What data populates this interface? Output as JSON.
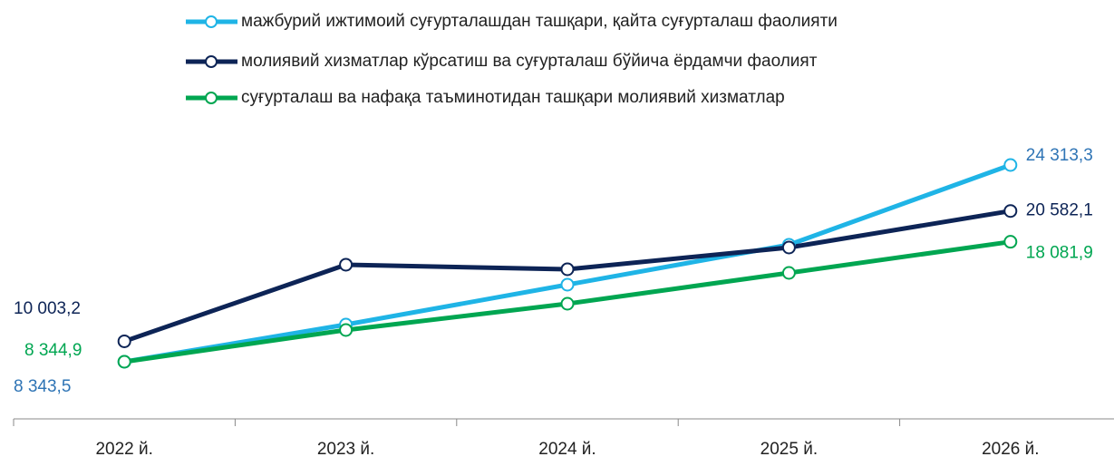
{
  "chart_data": {
    "type": "line",
    "categories": [
      "2022 й.",
      "2023 й.",
      "2024 й.",
      "2025 й.",
      "2026 й."
    ],
    "series": [
      {
        "name": "мажбурий ижтимоий суғурталашдан ташқари, қайта суғурталаш фаолияти",
        "color": "#1fb4e6",
        "label_color": "#2e74b5",
        "values": [
          8343.5,
          11361,
          14600,
          17838,
          24313.3
        ],
        "value_labels": [
          "8 343,5",
          null,
          null,
          null,
          "24 313,3"
        ]
      },
      {
        "name": "молиявий хизматлар кўрсатиш ва суғурталаш бўйича ёрдамчи фаолият",
        "color": "#0d2456",
        "label_color": "#0d2456",
        "values": [
          10003.2,
          16219,
          15851,
          17617,
          20582.1
        ],
        "value_labels": [
          "10 003,2",
          null,
          null,
          null,
          "20 582,1"
        ]
      },
      {
        "name": "суғурталаш ва нафақа таъминотидан ташқари молиявий хизматлар",
        "color": "#00a651",
        "label_color": "#00a651",
        "values": [
          8344.9,
          10920,
          13054,
          15556,
          18081.9
        ],
        "value_labels": [
          "8 344,9",
          null,
          null,
          null,
          "18 081,9"
        ]
      }
    ]
  }
}
